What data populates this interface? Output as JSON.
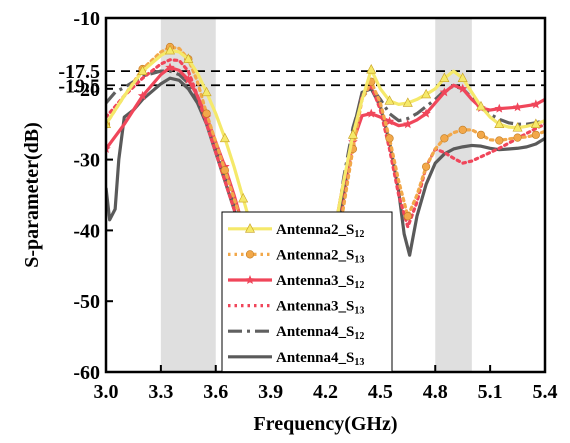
{
  "chart_data": {
    "type": "line",
    "title": "",
    "xlabel": "Frequency(GHz)",
    "ylabel": "S-parameter(dB)",
    "xlim": [
      3.0,
      5.4
    ],
    "ylim": [
      -60,
      -10
    ],
    "xticks": [
      "3.0",
      "3.3",
      "3.6",
      "3.9",
      "4.2",
      "4.5",
      "4.8",
      "5.1",
      "5.4"
    ],
    "yticks": [
      "-10",
      "-20",
      "-30",
      "-40",
      "-50",
      "-60"
    ],
    "grid": false,
    "legend_position": "lower-center",
    "shaded_bands": [
      [
        3.3,
        3.6
      ],
      [
        4.8,
        5.0
      ]
    ],
    "reference_lines": [
      {
        "y": -17.5,
        "label": "-17.5"
      },
      {
        "y": -19.5,
        "label": "-19.5"
      }
    ],
    "series": [
      {
        "name_main": "Antenna2_S",
        "name_sub": "12",
        "color": "#f5e96a",
        "style": "solid",
        "marker": "triangle",
        "x": [
          3.0,
          3.1,
          3.2,
          3.3,
          3.35,
          3.4,
          3.45,
          3.5,
          3.55,
          3.6,
          3.65,
          3.7,
          3.75,
          3.8,
          3.85,
          3.9,
          4.25,
          4.3,
          4.35,
          4.4,
          4.45,
          4.5,
          4.55,
          4.6,
          4.65,
          4.7,
          4.75,
          4.8,
          4.85,
          4.9,
          4.95,
          5.0,
          5.05,
          5.1,
          5.15,
          5.2,
          5.25,
          5.3,
          5.35,
          5.4
        ],
        "y": [
          -25.0,
          -21.0,
          -17.5,
          -15.3,
          -14.6,
          -14.8,
          -15.8,
          -17.8,
          -20.5,
          -23.5,
          -27.0,
          -31.0,
          -35.5,
          -40.0,
          -44.0,
          -46.5,
          -40.0,
          -33.0,
          -26.5,
          -21.5,
          -17.3,
          -20.0,
          -21.7,
          -22.2,
          -22.0,
          -21.5,
          -20.8,
          -20.0,
          -18.5,
          -17.5,
          -18.5,
          -20.5,
          -22.5,
          -24.0,
          -25.0,
          -25.4,
          -25.5,
          -25.3,
          -25.0,
          -24.5
        ]
      },
      {
        "name_main": "Antenna2_S",
        "name_sub": "13",
        "color": "#f2a84a",
        "style": "dotted",
        "marker": "circle",
        "x": [
          3.0,
          3.1,
          3.2,
          3.3,
          3.35,
          3.4,
          3.45,
          3.5,
          3.55,
          3.6,
          3.65,
          3.7,
          3.75,
          3.8,
          3.85,
          3.9,
          4.25,
          4.3,
          4.35,
          4.4,
          4.45,
          4.5,
          4.55,
          4.6,
          4.65,
          4.7,
          4.75,
          4.8,
          4.85,
          4.9,
          4.95,
          5.0,
          5.05,
          5.1,
          5.15,
          5.2,
          5.25,
          5.3,
          5.35,
          5.4
        ],
        "y": [
          -25.0,
          -21.0,
          -17.2,
          -14.8,
          -14.1,
          -14.3,
          -15.8,
          -19.0,
          -23.5,
          -27.5,
          -31.5,
          -35.5,
          -39.5,
          -43.5,
          -47.5,
          -50.0,
          -44.0,
          -36.5,
          -28.5,
          -21.5,
          -19.0,
          -22.0,
          -27.0,
          -33.0,
          -38.0,
          -35.0,
          -31.0,
          -28.5,
          -27.0,
          -26.2,
          -25.8,
          -25.8,
          -26.5,
          -27.2,
          -27.3,
          -27.1,
          -26.9,
          -26.8,
          -26.5,
          -26.0
        ]
      },
      {
        "name_main": "Antenna3_S",
        "name_sub": "12",
        "color": "#f0465a",
        "style": "solid",
        "marker": "star",
        "x": [
          3.0,
          3.1,
          3.2,
          3.3,
          3.35,
          3.4,
          3.45,
          3.5,
          3.55,
          3.6,
          3.65,
          3.7,
          3.75,
          3.8,
          3.85,
          3.9,
          4.25,
          4.3,
          4.35,
          4.4,
          4.45,
          4.5,
          4.55,
          4.6,
          4.65,
          4.7,
          4.75,
          4.8,
          4.85,
          4.9,
          4.95,
          5.0,
          5.05,
          5.1,
          5.15,
          5.2,
          5.25,
          5.3,
          5.35,
          5.4
        ],
        "y": [
          -28.5,
          -25.0,
          -21.0,
          -18.0,
          -17.0,
          -17.4,
          -18.7,
          -21.0,
          -24.0,
          -27.5,
          -31.0,
          -35.0,
          -39.5,
          -44.0,
          -48.0,
          -51.0,
          -40.0,
          -33.0,
          -27.5,
          -23.8,
          -23.5,
          -24.0,
          -24.6,
          -25.2,
          -25.0,
          -24.4,
          -23.5,
          -22.0,
          -20.5,
          -19.5,
          -20.0,
          -21.5,
          -22.7,
          -23.0,
          -22.8,
          -22.7,
          -22.6,
          -22.4,
          -22.2,
          -21.5
        ]
      },
      {
        "name_main": "Antenna3_S",
        "name_sub": "13",
        "color": "#f0465a",
        "style": "dotted",
        "marker": "none",
        "x": [
          3.0,
          3.1,
          3.2,
          3.3,
          3.35,
          3.4,
          3.45,
          3.5,
          3.55,
          3.6,
          3.65,
          3.7,
          3.75,
          3.8,
          3.85,
          3.9,
          4.25,
          4.3,
          4.35,
          4.4,
          4.45,
          4.5,
          4.55,
          4.6,
          4.65,
          4.7,
          4.75,
          4.8,
          4.85,
          4.9,
          4.95,
          5.0,
          5.05,
          5.1,
          5.15,
          5.2,
          5.25,
          5.3,
          5.35,
          5.4
        ],
        "y": [
          -24.0,
          -21.0,
          -18.5,
          -16.5,
          -15.9,
          -16.0,
          -17.5,
          -21.0,
          -25.0,
          -29.0,
          -33.0,
          -37.0,
          -41.5,
          -46.0,
          -50.0,
          -52.5,
          -43.0,
          -36.0,
          -28.0,
          -21.0,
          -19.5,
          -23.0,
          -28.5,
          -35.0,
          -39.5,
          -36.0,
          -31.0,
          -28.5,
          -29.0,
          -29.8,
          -30.5,
          -30.2,
          -29.6,
          -29.0,
          -28.4,
          -27.7,
          -27.0,
          -26.3,
          -25.6,
          -25.0
        ]
      },
      {
        "name_main": "Antenna4_S",
        "name_sub": "12",
        "color": "#606060",
        "style": "dashdot",
        "marker": "none",
        "x": [
          3.0,
          3.05,
          3.1,
          3.15,
          3.2,
          3.3,
          3.35,
          3.4,
          3.45,
          3.5,
          3.55,
          3.6,
          3.65,
          3.7,
          3.75,
          3.8,
          3.85,
          3.9,
          4.25,
          4.3,
          4.35,
          4.4,
          4.45,
          4.5,
          4.55,
          4.6,
          4.65,
          4.7,
          4.75,
          4.8,
          4.85,
          4.9,
          4.95,
          5.0,
          5.05,
          5.1,
          5.15,
          5.2,
          5.25,
          5.3,
          5.35,
          5.4
        ],
        "y": [
          -22.0,
          -20.5,
          -19.8,
          -19.0,
          -18.2,
          -17.5,
          -17.5,
          -18.0,
          -19.2,
          -21.5,
          -24.5,
          -28.5,
          -32.5,
          -36.5,
          -40.5,
          -44.5,
          -48.5,
          -51.0,
          -41.0,
          -32.5,
          -25.5,
          -21.2,
          -19.8,
          -21.5,
          -23.5,
          -24.5,
          -24.2,
          -23.5,
          -22.5,
          -21.5,
          -20.3,
          -19.6,
          -20.0,
          -21.3,
          -22.6,
          -23.6,
          -24.3,
          -24.8,
          -25.0,
          -25.0,
          -24.8,
          -24.5
        ]
      },
      {
        "name_main": "Antenna4_S",
        "name_sub": "13",
        "color": "#5a5a5a",
        "style": "solid",
        "marker": "none",
        "x": [
          3.0,
          3.02,
          3.05,
          3.07,
          3.1,
          3.15,
          3.2,
          3.3,
          3.35,
          3.4,
          3.45,
          3.5,
          3.55,
          3.6,
          3.65,
          3.7,
          3.75,
          3.8,
          3.85,
          3.9,
          4.25,
          4.3,
          4.35,
          4.4,
          4.45,
          4.5,
          4.55,
          4.6,
          4.63,
          4.66,
          4.7,
          4.75,
          4.8,
          4.85,
          4.9,
          4.95,
          5.0,
          5.05,
          5.1,
          5.15,
          5.2,
          5.25,
          5.3,
          5.35,
          5.4
        ],
        "y": [
          -34.0,
          -38.5,
          -37.0,
          -30.0,
          -24.0,
          -23.0,
          -21.5,
          -19.3,
          -18.5,
          -18.8,
          -20.0,
          -22.0,
          -25.0,
          -29.0,
          -33.0,
          -37.0,
          -41.0,
          -45.0,
          -49.0,
          -51.5,
          -45.0,
          -35.0,
          -26.0,
          -20.5,
          -20.0,
          -22.5,
          -27.5,
          -34.5,
          -40.5,
          -43.5,
          -38.0,
          -33.5,
          -30.5,
          -29.2,
          -28.5,
          -28.2,
          -28.0,
          -28.1,
          -28.4,
          -28.6,
          -28.5,
          -28.4,
          -28.2,
          -27.8,
          -27.0
        ]
      }
    ]
  }
}
